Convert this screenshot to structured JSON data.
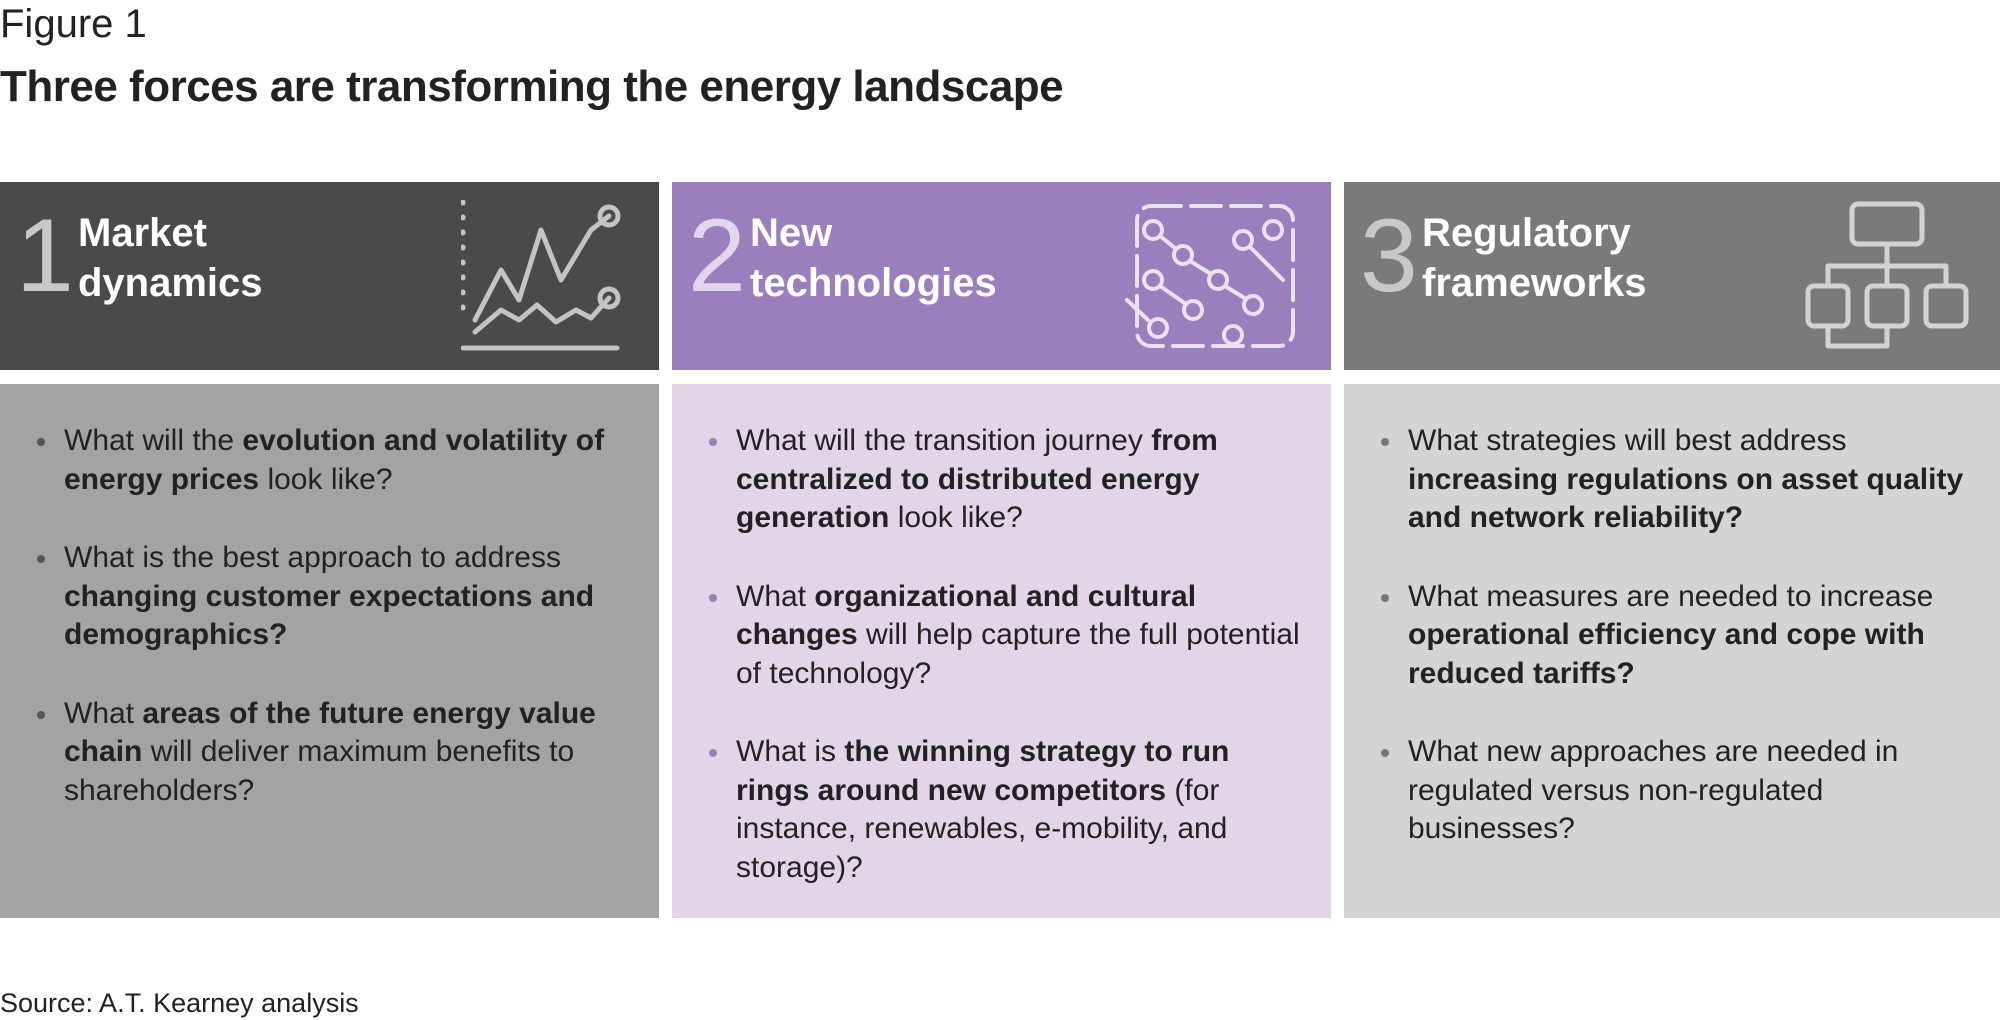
{
  "header": {
    "figure_label": "Figure 1",
    "title": "Three forces are transforming the energy landscape"
  },
  "columns": [
    {
      "number": "1",
      "heading": "Market dynamics",
      "bullets": [
        [
          {
            "text": "What will the ",
            "bold": false
          },
          {
            "text": "evolution and volatility of energy prices",
            "bold": true
          },
          {
            "text": " look like?",
            "bold": false
          }
        ],
        [
          {
            "text": "What is the best approach to address ",
            "bold": false
          },
          {
            "text": "changing customer expectations and demographics?",
            "bold": true
          }
        ],
        [
          {
            "text": "What ",
            "bold": false
          },
          {
            "text": "areas of the future energy value chain",
            "bold": true
          },
          {
            "text": " will deliver maximum benefits to shareholders?",
            "bold": false
          }
        ]
      ]
    },
    {
      "number": "2",
      "heading": "New technologies",
      "bullets": [
        [
          {
            "text": "What will the transition journey ",
            "bold": false
          },
          {
            "text": "from centralized to distributed energy generation",
            "bold": true
          },
          {
            "text": " look like?",
            "bold": false
          }
        ],
        [
          {
            "text": "What ",
            "bold": false
          },
          {
            "text": "organizational and cultural changes",
            "bold": true
          },
          {
            "text": " will help capture the full potential of technology?",
            "bold": false
          }
        ],
        [
          {
            "text": "What is ",
            "bold": false
          },
          {
            "text": "the winning strategy to run rings around new competitors",
            "bold": true
          },
          {
            "text": " (for instance, renewables, e-mobility, and storage)?",
            "bold": false
          }
        ]
      ]
    },
    {
      "number": "3",
      "heading": "Regulatory frameworks",
      "bullets": [
        [
          {
            "text": "What strategies will best address ",
            "bold": false
          },
          {
            "text": "increasing regulations on asset quality and network reliability?",
            "bold": true
          }
        ],
        [
          {
            "text": "What measures are needed to increase ",
            "bold": false
          },
          {
            "text": "operational efficiency and cope with reduced tariffs?",
            "bold": true
          }
        ],
        [
          {
            "text": "What new approaches are needed in regulated versus non-regulated businesses?",
            "bold": false
          }
        ]
      ]
    }
  ],
  "source": "Source: A.T. Kearney analysis"
}
